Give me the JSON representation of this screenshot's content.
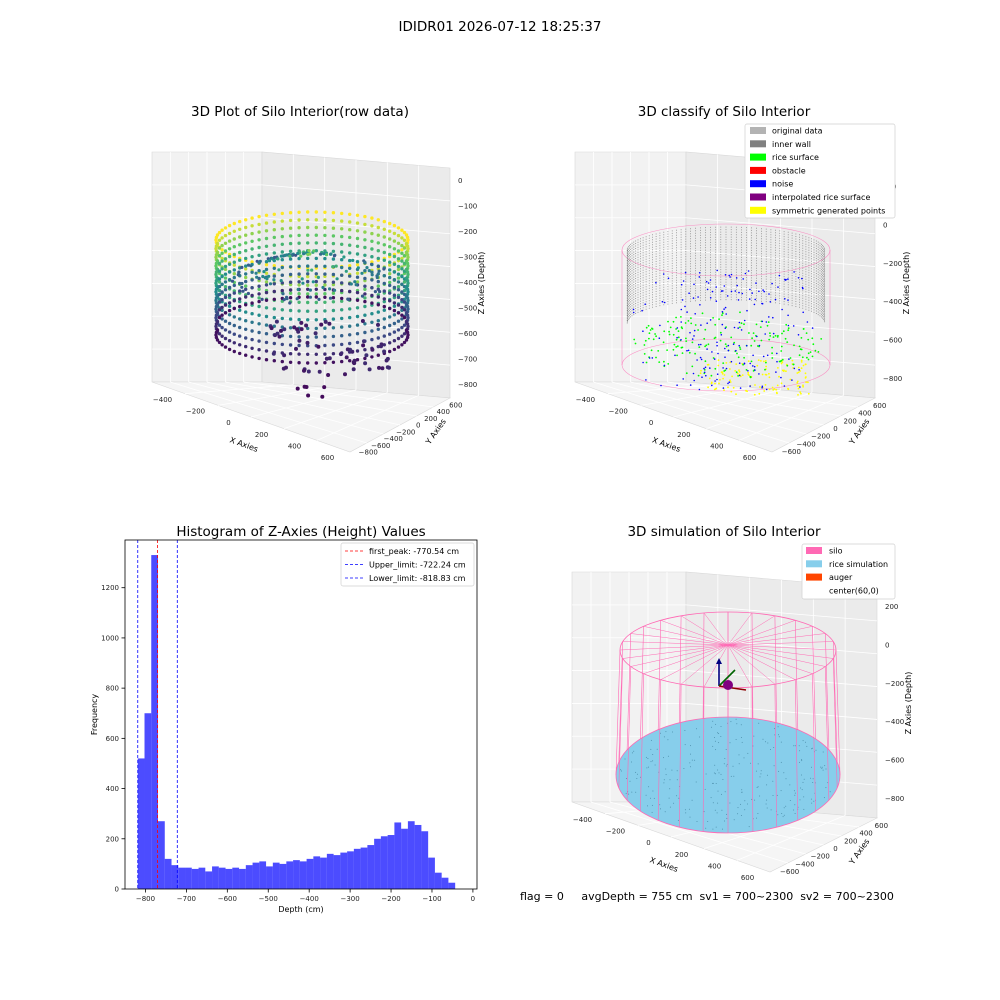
{
  "suptitle": "IDIDR01 2026-07-12 18:25:37",
  "status_line": "flag = 0     avgDepth = 755 cm  sv1 = 700~2300  sv2 = 700~2300",
  "chart_data": [
    {
      "type": "scatter",
      "title": "3D Plot of Silo Interior(row data)",
      "xlabel": "X Axies",
      "ylabel": "Y Axies",
      "zlabel": "Z Axies (Depth)",
      "xticks": [
        "−400",
        "−200",
        "0",
        "200",
        "400",
        "600"
      ],
      "yticks": [
        "−800",
        "−600",
        "−400",
        "−200",
        "0",
        "200",
        "400",
        "600"
      ],
      "zticks": [
        "0",
        "−100",
        "−200",
        "−300",
        "−400",
        "−500",
        "−600",
        "−700",
        "−800"
      ],
      "colormap": "viridis",
      "zlim": [
        -850,
        0
      ]
    },
    {
      "type": "scatter",
      "title": "3D classify of Silo Interior",
      "xlabel": "X Axies",
      "ylabel": "Y Axies",
      "zlabel": "Z Axies (Depth)",
      "xticks": [
        "−400",
        "−200",
        "0",
        "200",
        "400",
        "600"
      ],
      "yticks": [
        "−600",
        "−400",
        "−200",
        "0",
        "200",
        "400",
        "600"
      ],
      "zticks": [
        "200",
        "0",
        "−200",
        "−400",
        "−600",
        "−800"
      ],
      "legend": [
        {
          "label": "original data",
          "color": "#b3b3b3"
        },
        {
          "label": "inner wall",
          "color": "#808080"
        },
        {
          "label": "rice surface",
          "color": "#00ff00"
        },
        {
          "label": "obstacle",
          "color": "#ff0000"
        },
        {
          "label": "noise",
          "color": "#0000ff"
        },
        {
          "label": "interpolated rice surface",
          "color": "#800080"
        },
        {
          "label": "symmetric generated points",
          "color": "#ffff00"
        }
      ],
      "legend_position": "top-right"
    },
    {
      "type": "bar",
      "title": "Histogram of Z-Axies (Height) Values",
      "xlabel": "Depth (cm)",
      "ylabel": "Frequency",
      "xlim": [
        -850,
        10
      ],
      "ylim": [
        0,
        1390
      ],
      "xticks": [
        -800,
        -700,
        -600,
        -500,
        -400,
        -300,
        -200,
        -100,
        0
      ],
      "xtick_labels": [
        "−800",
        "−700",
        "−600",
        "−500",
        "−400",
        "−300",
        "−200",
        "−100",
        "0"
      ],
      "yticks": [
        0,
        200,
        400,
        600,
        800,
        1000,
        1200
      ],
      "bin_width": 16.5,
      "bin_start": -818.83,
      "values": [
        520,
        700,
        1330,
        270,
        120,
        95,
        85,
        85,
        80,
        85,
        70,
        90,
        85,
        80,
        85,
        80,
        95,
        105,
        110,
        90,
        105,
        100,
        110,
        115,
        110,
        120,
        130,
        125,
        140,
        135,
        145,
        150,
        160,
        165,
        175,
        200,
        210,
        215,
        265,
        240,
        270,
        255,
        230,
        125,
        65,
        45,
        25
      ],
      "bar_color": "#0000ff",
      "lines": [
        {
          "label": "first_peak: -770.54 cm",
          "x": -770.54,
          "color": "#ff0000"
        },
        {
          "label": "Upper_limit: -722.24 cm",
          "x": -722.24,
          "color": "#0000ff"
        },
        {
          "label": "Lower_limit: -818.83 cm",
          "x": -818.83,
          "color": "#0000ff"
        }
      ],
      "legend_position": "top-right"
    },
    {
      "type": "scatter",
      "title": "3D simulation of Silo Interior",
      "xlabel": "X Axies",
      "ylabel": "Y Axies",
      "zlabel": "Z Axies (Depth)",
      "xticks": [
        "−400",
        "−200",
        "0",
        "200",
        "400",
        "600"
      ],
      "yticks": [
        "−600",
        "−400",
        "−200",
        "0",
        "200",
        "400",
        "600"
      ],
      "zticks": [
        "200",
        "0",
        "−200",
        "−400",
        "−600",
        "−800"
      ],
      "legend": [
        {
          "label": "silo",
          "color": "#ff69b4"
        },
        {
          "label": "rice simulation",
          "color": "#87ceeb"
        },
        {
          "label": "auger",
          "color": "#ff4500"
        },
        {
          "label": "center(60,0)",
          "color": ""
        }
      ],
      "legend_position": "top-right"
    }
  ]
}
